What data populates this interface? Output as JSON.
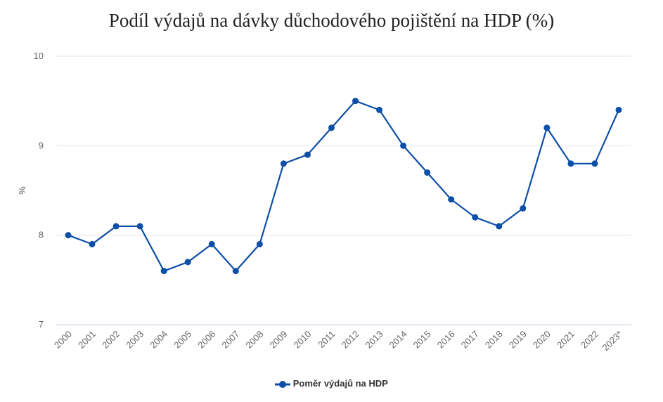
{
  "chart_data": {
    "type": "line",
    "title": "Podíl výdajů na dávky důchodového pojištění na HDP (%)",
    "xlabel": "",
    "ylabel": "%",
    "ylim": [
      7,
      10
    ],
    "yticks": [
      "7",
      "8",
      "9",
      "10"
    ],
    "categories": [
      "2000",
      "2001",
      "2002",
      "2003",
      "2004",
      "2005",
      "2006",
      "2007",
      "2008",
      "2009",
      "2010",
      "2011",
      "2012",
      "2013",
      "2014",
      "2015",
      "2016",
      "2017",
      "2018",
      "2019",
      "2020",
      "2021",
      "2022",
      "2023*"
    ],
    "series": [
      {
        "name": "Poměr výdajů na HDP",
        "color": "#0d4ea6",
        "values": [
          8.0,
          7.9,
          8.1,
          8.1,
          7.6,
          7.7,
          7.9,
          7.6,
          7.9,
          8.8,
          8.9,
          9.2,
          9.5,
          9.4,
          9.0,
          8.7,
          8.4,
          8.2,
          8.1,
          8.3,
          9.2,
          8.8,
          8.8,
          9.4
        ]
      }
    ],
    "grid": true,
    "legend": "bottom"
  }
}
